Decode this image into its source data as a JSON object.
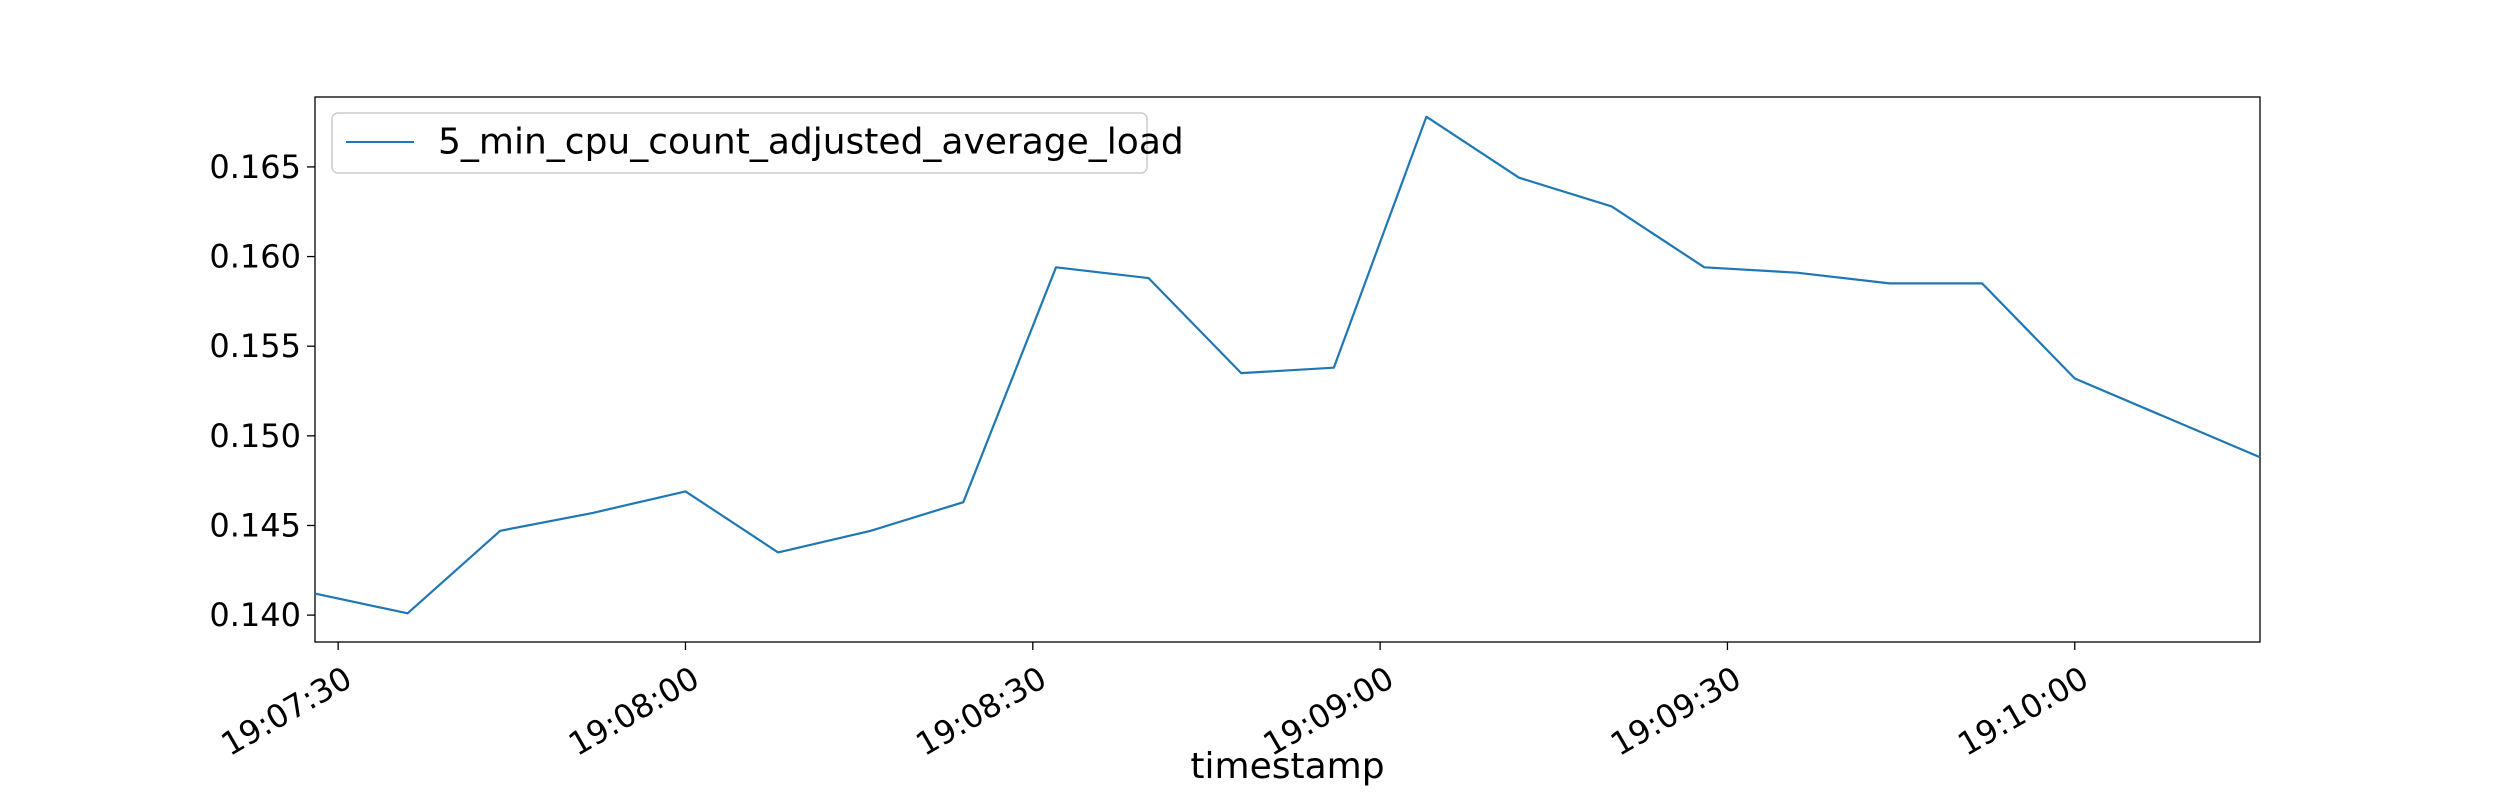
{
  "chart_data": {
    "type": "line",
    "xlabel": "timestamp",
    "ylabel": "",
    "x_ticks": [
      "19:07:30",
      "19:08:00",
      "19:08:30",
      "19:09:00",
      "19:09:30",
      "19:10:00"
    ],
    "y_ticks": [
      "0.140",
      "0.145",
      "0.150",
      "0.155",
      "0.160",
      "0.165"
    ],
    "xlim": [
      "19:07:28",
      "19:10:16"
    ],
    "ylim": [
      0.1385,
      0.1689
    ],
    "grid": false,
    "legend_position": "top-left",
    "series": [
      {
        "name": "5_min_cpu_count_adjusted_average_load",
        "color": "#1f77b4",
        "points": [
          {
            "x": "19:07:28",
            "y": 0.1412
          },
          {
            "x": "19:07:36",
            "y": 0.1401
          },
          {
            "x": "19:07:44",
            "y": 0.1447
          },
          {
            "x": "19:07:52",
            "y": 0.1457
          },
          {
            "x": "19:08:00",
            "y": 0.1469
          },
          {
            "x": "19:08:08",
            "y": 0.1435
          },
          {
            "x": "19:08:16",
            "y": 0.1447
          },
          {
            "x": "19:08:24",
            "y": 0.1463
          },
          {
            "x": "19:08:32",
            "y": 0.1594
          },
          {
            "x": "19:08:40",
            "y": 0.1588
          },
          {
            "x": "19:08:48",
            "y": 0.1535
          },
          {
            "x": "19:08:56",
            "y": 0.1538
          },
          {
            "x": "19:09:04",
            "y": 0.1678
          },
          {
            "x": "19:09:12",
            "y": 0.1644
          },
          {
            "x": "19:09:20",
            "y": 0.1628
          },
          {
            "x": "19:09:28",
            "y": 0.1594
          },
          {
            "x": "19:09:36",
            "y": 0.1591
          },
          {
            "x": "19:09:44",
            "y": 0.1585
          },
          {
            "x": "19:09:52",
            "y": 0.1585
          },
          {
            "x": "19:10:00",
            "y": 0.1532
          },
          {
            "x": "19:10:08",
            "y": 0.151
          },
          {
            "x": "19:10:16",
            "y": 0.1488
          }
        ]
      }
    ]
  }
}
